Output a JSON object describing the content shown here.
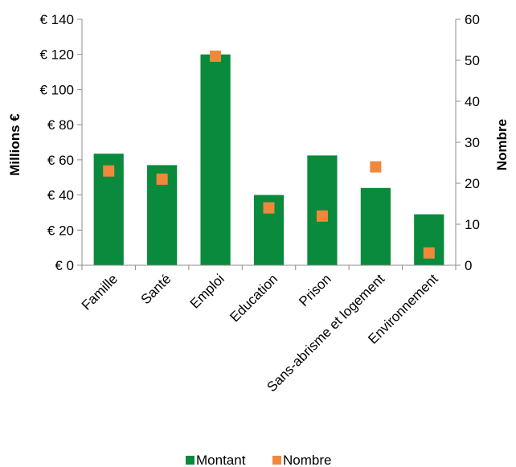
{
  "chart_data": {
    "type": "bar",
    "title": "",
    "categories": [
      "Famille",
      "Santé",
      "Emploi",
      "Education",
      "Prison",
      "Sans-abrisme et logement",
      "Environnement"
    ],
    "series": [
      {
        "name": "Montant",
        "type": "bar",
        "axis": "left",
        "color": "#0a8a3c",
        "values": [
          63.5,
          57,
          120,
          40,
          62.5,
          44,
          29
        ]
      },
      {
        "name": "Nombre",
        "type": "scatter",
        "axis": "right",
        "color": "#f0883c",
        "marker": "square",
        "values": [
          23,
          21,
          51,
          14,
          12,
          24,
          3
        ]
      }
    ],
    "y_left": {
      "label": "Millions €",
      "ylim": [
        0,
        140
      ],
      "ticks": [
        0,
        20,
        40,
        60,
        80,
        100,
        120,
        140
      ],
      "tick_labels": [
        "€ 0",
        "€ 20",
        "€ 40",
        "€ 60",
        "€ 80",
        "€ 100",
        "€ 120",
        "€ 140"
      ]
    },
    "y_right": {
      "label": "Nombre",
      "ylim": [
        0,
        60
      ],
      "ticks": [
        0,
        10,
        20,
        30,
        40,
        50,
        60
      ],
      "tick_labels": [
        "0",
        "10",
        "20",
        "30",
        "40",
        "50",
        "60"
      ]
    },
    "grid": false,
    "legend": {
      "position": "bottom",
      "items": [
        "Montant",
        "Nombre"
      ]
    }
  }
}
